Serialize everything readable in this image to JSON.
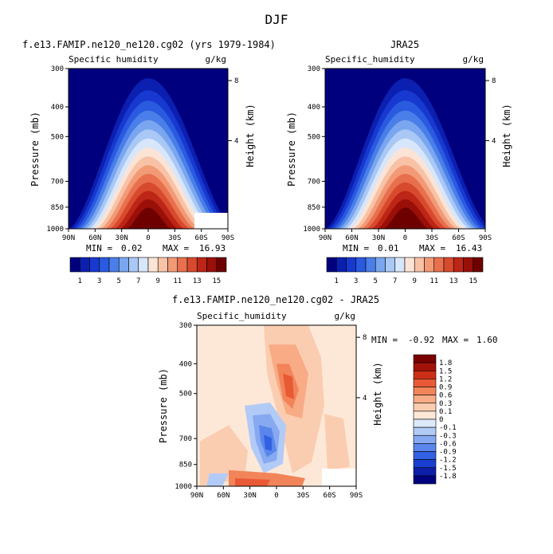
{
  "figure_title": "DJF",
  "colors": {
    "abs_palette": [
      "#00007f",
      "#0b1fb0",
      "#1839d0",
      "#2a5ae0",
      "#4a7ee8",
      "#7aa6f0",
      "#a9c8f5",
      "#d8e6fb",
      "#fbe4d6",
      "#f8c2a6",
      "#f29a76",
      "#e8704e",
      "#d84a2e",
      "#bd2616",
      "#9a0f08",
      "#6e0000"
    ],
    "diff_palette": [
      "#00007f",
      "#0d1fa8",
      "#1a3fd0",
      "#3361e3",
      "#5a86ec",
      "#87a9f1",
      "#b2cbf6",
      "#dce9fb",
      "#fde8d8",
      "#fbcdb0",
      "#f8ab85",
      "#f2845a",
      "#e85a35",
      "#cc2f17",
      "#a3120a",
      "#7a0000"
    ],
    "white": "#ffffff"
  },
  "chart_data": [
    {
      "type": "contour",
      "title": "f.e13.FAMIP.ne120_ne120.cg02 (yrs 1979-1984)",
      "left_label": "Specific humidity",
      "right_label": "g/kg",
      "ylabel": "Pressure (mb)",
      "right_axis_label": "Height (km)",
      "x_ticks": [
        "90N",
        "60N",
        "30N",
        "0",
        "30S",
        "60S",
        "90S"
      ],
      "y_ticks": [
        "300",
        "400",
        "500",
        "700",
        "850",
        "1000"
      ],
      "right_ticks": [
        "8",
        "4"
      ],
      "stats": {
        "min_label": "MIN =",
        "min": "0.02",
        "max_label": "MAX =",
        "max": "16.93"
      },
      "colorbar_labels": [
        "1",
        "3",
        "5",
        "7",
        "9",
        "11",
        "13",
        "15"
      ],
      "peak_value": 16.93
    },
    {
      "type": "contour",
      "title": "JRA25",
      "left_label": "Specific_humidity",
      "right_label": "g/kg",
      "ylabel": "Pressure (mb)",
      "right_axis_label": "Height (km)",
      "x_ticks": [
        "90N",
        "60N",
        "30N",
        "0",
        "30S",
        "60S",
        "90S"
      ],
      "y_ticks": [
        "300",
        "400",
        "500",
        "700",
        "850",
        "1000"
      ],
      "right_ticks": [
        "8",
        "4"
      ],
      "stats": {
        "min_label": "MIN =",
        "min": "0.01",
        "max_label": "MAX =",
        "max": "16.43"
      },
      "colorbar_labels": [
        "1",
        "3",
        "5",
        "7",
        "9",
        "11",
        "13",
        "15"
      ],
      "peak_value": 16.43
    },
    {
      "type": "contour",
      "title": "f.e13.FAMIP.ne120_ne120.cg02 - JRA25",
      "left_label": "Specific_humidity",
      "right_label": "g/kg",
      "ylabel": "Pressure (mb)",
      "right_axis_label": "Height (km)",
      "x_ticks": [
        "90N",
        "60N",
        "30N",
        "0",
        "30S",
        "60S",
        "90S"
      ],
      "y_ticks": [
        "300",
        "400",
        "500",
        "700",
        "850",
        "1000"
      ],
      "right_ticks": [
        "8",
        "4"
      ],
      "stats": {
        "min_label": "MIN =",
        "min": "-0.92",
        "max_label": "MAX =",
        "max": "1.60"
      },
      "colorbar_labels": [
        "1.8",
        "1.5",
        "1.2",
        "0.9",
        "0.6",
        "0.3",
        "0.1",
        "0",
        "-0.1",
        "-0.3",
        "-0.6",
        "-0.9",
        "-1.2",
        "-1.5",
        "-1.8"
      ]
    }
  ]
}
